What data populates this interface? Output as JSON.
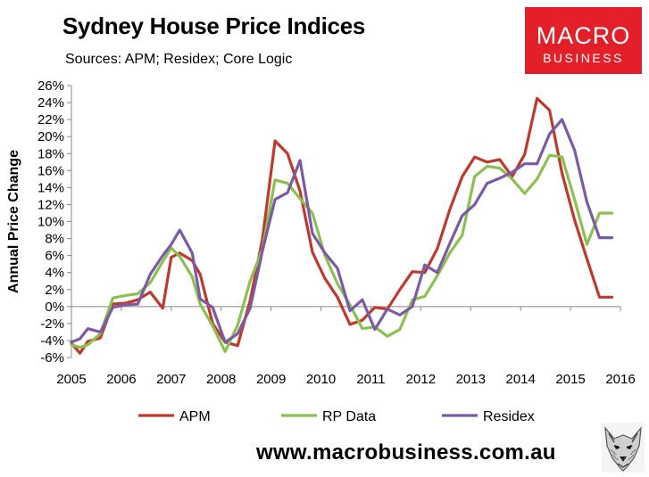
{
  "header": {
    "title": "Sydney House Price Indices",
    "subtitle": "Sources: APM; Residex; Core Logic"
  },
  "logo": {
    "line1": "MACRO",
    "line2": "BUSINESS",
    "color": "#e3202a"
  },
  "footer": {
    "url": "www.macrobusiness.com.au",
    "mascot_icon": "wolf-icon"
  },
  "chart_data": {
    "type": "line",
    "title": "Sydney House Price Indices",
    "xlabel": "",
    "ylabel": "Annual Price Change",
    "xlim": [
      2005,
      2016
    ],
    "ylim": [
      -6,
      26
    ],
    "x_ticks": [
      2005,
      2006,
      2007,
      2008,
      2009,
      2010,
      2011,
      2012,
      2013,
      2014,
      2015,
      2016
    ],
    "x_tick_labels": [
      "2005",
      "2006",
      "2007",
      "2008",
      "2009",
      "2010",
      "2011",
      "2012",
      "2013",
      "2014",
      "2015",
      "2016"
    ],
    "y_ticks": [
      -6,
      -4,
      -2,
      0,
      2,
      4,
      6,
      8,
      10,
      12,
      14,
      16,
      18,
      20,
      22,
      24,
      26
    ],
    "y_tick_labels": [
      "-6%",
      "-4%",
      "-2%",
      "0%",
      "2%",
      "4%",
      "6%",
      "8%",
      "10%",
      "12%",
      "14%",
      "16%",
      "18%",
      "20%",
      "22%",
      "24%",
      "26%"
    ],
    "grid": false,
    "legend_position": "bottom",
    "series": [
      {
        "name": "APM",
        "color": "#c0392b",
        "x": [
          2005.0,
          2005.17,
          2005.33,
          2005.58,
          2005.83,
          2006.08,
          2006.33,
          2006.58,
          2006.83,
          2007.0,
          2007.17,
          2007.42,
          2007.58,
          2007.83,
          2008.08,
          2008.33,
          2008.58,
          2008.83,
          2009.08,
          2009.33,
          2009.58,
          2009.83,
          2010.08,
          2010.33,
          2010.58,
          2010.83,
          2011.08,
          2011.33,
          2011.58,
          2011.83,
          2012.08,
          2012.33,
          2012.58,
          2012.83,
          2013.08,
          2013.33,
          2013.58,
          2013.83,
          2014.08,
          2014.33,
          2014.58,
          2014.83,
          2015.08,
          2015.33,
          2015.58,
          2015.83
        ],
        "values": [
          -4.3,
          -5.5,
          -4.1,
          -3.7,
          0.3,
          0.4,
          0.8,
          1.7,
          -0.2,
          5.8,
          6.3,
          5.4,
          3.8,
          -2.0,
          -4.2,
          -4.6,
          0.7,
          8.0,
          19.5,
          18.0,
          13.6,
          6.4,
          3.3,
          1.1,
          -2.1,
          -1.6,
          -0.1,
          -0.3,
          2.0,
          4.1,
          4.0,
          6.8,
          11.4,
          15.3,
          17.6,
          17.0,
          17.3,
          15.3,
          17.9,
          24.5,
          23.1,
          15.7,
          10.2,
          5.6,
          1.1,
          1.1
        ]
      },
      {
        "name": "RP Data",
        "color": "#8cc152",
        "x": [
          2005.0,
          2005.17,
          2005.33,
          2005.58,
          2005.83,
          2006.08,
          2006.33,
          2006.58,
          2006.83,
          2007.0,
          2007.17,
          2007.42,
          2007.58,
          2007.83,
          2008.08,
          2008.33,
          2008.58,
          2008.83,
          2009.08,
          2009.33,
          2009.58,
          2009.83,
          2010.08,
          2010.33,
          2010.58,
          2010.83,
          2011.08,
          2011.33,
          2011.58,
          2011.83,
          2012.08,
          2012.33,
          2012.58,
          2012.83,
          2013.08,
          2013.33,
          2013.58,
          2013.83,
          2014.08,
          2014.33,
          2014.58,
          2014.83,
          2015.08,
          2015.33,
          2015.58,
          2015.83
        ],
        "values": [
          -4.5,
          -4.8,
          -4.5,
          -3.2,
          1.0,
          1.3,
          1.5,
          2.8,
          5.3,
          6.9,
          5.9,
          3.5,
          0.3,
          -2.3,
          -5.3,
          -2.2,
          3.0,
          6.8,
          14.9,
          14.5,
          12.7,
          11.0,
          6.0,
          2.7,
          0.2,
          -2.6,
          -2.4,
          -3.5,
          -2.7,
          0.8,
          1.2,
          3.6,
          6.3,
          8.4,
          15.3,
          16.5,
          16.3,
          15.0,
          13.3,
          15.0,
          17.8,
          17.6,
          12.6,
          7.3,
          11.0,
          11.0
        ]
      },
      {
        "name": "Residex",
        "color": "#7b5aa6",
        "x": [
          2005.0,
          2005.17,
          2005.33,
          2005.58,
          2005.83,
          2006.08,
          2006.33,
          2006.58,
          2006.83,
          2007.0,
          2007.17,
          2007.42,
          2007.58,
          2007.83,
          2008.08,
          2008.33,
          2008.58,
          2008.83,
          2009.08,
          2009.33,
          2009.58,
          2009.83,
          2010.08,
          2010.33,
          2010.58,
          2010.83,
          2011.08,
          2011.33,
          2011.58,
          2011.83,
          2012.08,
          2012.33,
          2012.58,
          2012.83,
          2013.08,
          2013.33,
          2013.58,
          2013.83,
          2014.08,
          2014.33,
          2014.58,
          2014.83,
          2015.08,
          2015.33,
          2015.58,
          2015.83
        ],
        "values": [
          -4.2,
          -3.8,
          -2.6,
          -3.0,
          -0.1,
          0.2,
          0.3,
          3.8,
          6.0,
          7.3,
          9.0,
          6.3,
          0.9,
          -0.1,
          -4.2,
          -3.2,
          -0.2,
          6.6,
          12.6,
          13.4,
          17.2,
          8.6,
          6.3,
          4.5,
          -0.5,
          0.8,
          -2.7,
          -0.3,
          -1.0,
          0.0,
          4.9,
          4.0,
          7.4,
          10.7,
          12.0,
          14.5,
          15.1,
          15.8,
          16.8,
          16.8,
          20.3,
          22.0,
          18.4,
          12.3,
          8.1,
          8.1
        ]
      }
    ]
  }
}
